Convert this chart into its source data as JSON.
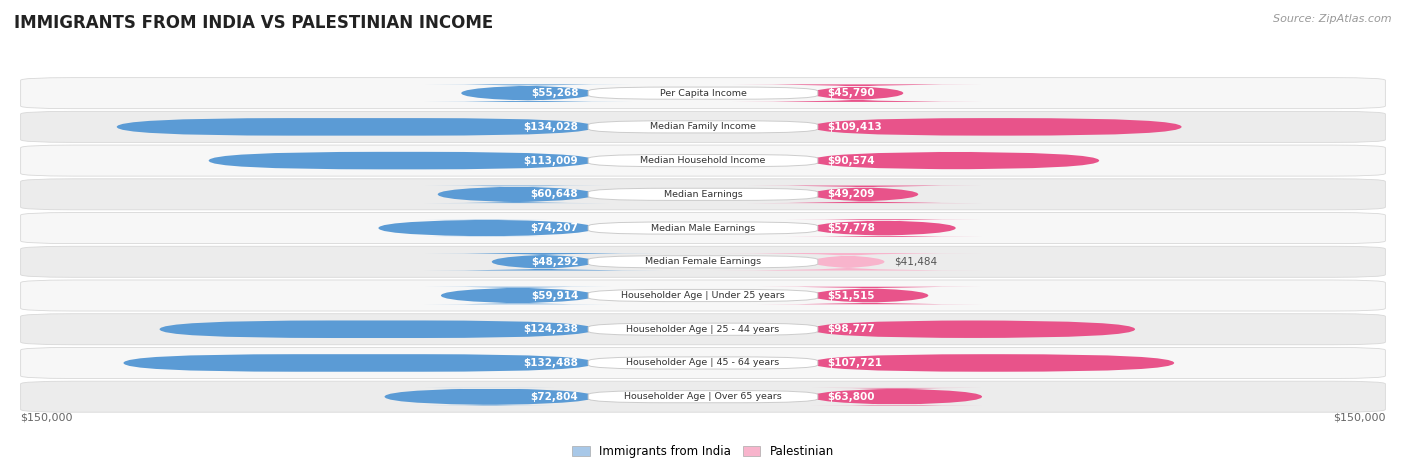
{
  "title": "IMMIGRANTS FROM INDIA VS PALESTINIAN INCOME",
  "source": "Source: ZipAtlas.com",
  "categories": [
    "Per Capita Income",
    "Median Family Income",
    "Median Household Income",
    "Median Earnings",
    "Median Male Earnings",
    "Median Female Earnings",
    "Householder Age | Under 25 years",
    "Householder Age | 25 - 44 years",
    "Householder Age | 45 - 64 years",
    "Householder Age | Over 65 years"
  ],
  "india_values": [
    55268,
    134028,
    113009,
    60648,
    74207,
    48292,
    59914,
    124238,
    132488,
    72804
  ],
  "palestinian_values": [
    45790,
    109413,
    90574,
    49209,
    57778,
    41484,
    51515,
    98777,
    107721,
    63800
  ],
  "india_labels": [
    "$55,268",
    "$134,028",
    "$113,009",
    "$60,648",
    "$74,207",
    "$48,292",
    "$59,914",
    "$124,238",
    "$132,488",
    "$72,804"
  ],
  "palestinian_labels": [
    "$45,790",
    "$109,413",
    "$90,574",
    "$49,209",
    "$57,778",
    "$41,484",
    "$51,515",
    "$98,777",
    "$107,721",
    "$63,800"
  ],
  "india_color_light": "#a8c8e8",
  "india_color_dark": "#5b9bd5",
  "palestinian_color_light": "#f8b4cc",
  "palestinian_color_dark": "#e8538a",
  "max_value": 150000,
  "xlabel_left": "$150,000",
  "xlabel_right": "$150,000",
  "legend_india": "Immigrants from India",
  "legend_pal": "Palestinian",
  "background_color": "#ffffff",
  "row_bg_odd": "#f7f7f7",
  "row_bg_even": "#ececec",
  "row_border": "#d8d8d8"
}
